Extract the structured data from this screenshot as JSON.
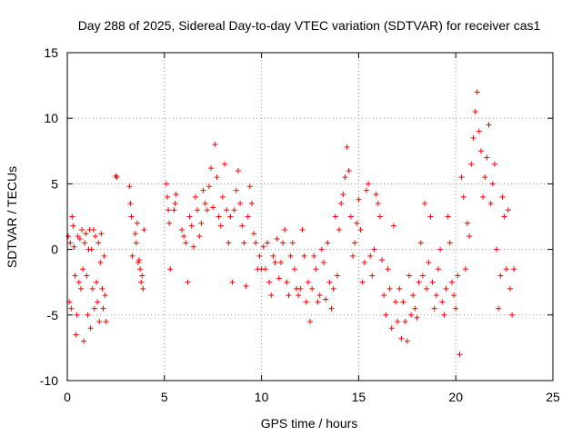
{
  "chart_data": {
    "type": "scatter",
    "title": "Day 288 of 2025, Sidereal Day-to-day VTEC variation (SDTVAR) for receiver cas1",
    "xlabel": "GPS time / hours",
    "ylabel": "SDTVAR / TECUs",
    "xlim": [
      0,
      25
    ],
    "ylim": [
      -10,
      15
    ],
    "xticks": [
      0,
      5,
      10,
      15,
      20,
      25
    ],
    "yticks": [
      -10,
      -5,
      0,
      5,
      10,
      15
    ],
    "xtick_labels": [
      "0",
      "5",
      "10",
      "15",
      "20",
      "25"
    ],
    "ytick_labels": [
      "-10",
      "-5",
      "0",
      "5",
      "10",
      "15"
    ],
    "grid": true,
    "marker": "plus",
    "color": "#ff0000",
    "series": [
      {
        "name": "SDTVAR",
        "x": [
          0.05,
          0.1,
          0.15,
          0.2,
          0.25,
          0.3,
          0.35,
          0.4,
          0.45,
          0.5,
          0.55,
          0.6,
          0.65,
          0.7,
          0.75,
          0.8,
          0.85,
          0.9,
          0.95,
          1.0,
          1.05,
          1.1,
          1.15,
          1.2,
          1.25,
          1.3,
          1.35,
          1.4,
          1.45,
          1.5,
          1.55,
          1.6,
          1.65,
          1.7,
          1.75,
          1.8,
          1.85,
          1.9,
          1.95,
          2.0,
          2.5,
          2.55,
          3.2,
          3.25,
          3.3,
          3.35,
          3.5,
          3.55,
          3.6,
          3.65,
          3.7,
          3.75,
          3.8,
          3.85,
          3.9,
          3.95,
          5.1,
          5.15,
          5.2,
          5.25,
          5.3,
          5.5,
          5.55,
          5.6,
          5.9,
          6.0,
          6.1,
          6.2,
          6.3,
          6.4,
          6.5,
          6.6,
          6.7,
          6.8,
          6.9,
          7.0,
          7.1,
          7.2,
          7.3,
          7.4,
          7.5,
          7.6,
          7.7,
          7.8,
          7.9,
          8.0,
          8.1,
          8.2,
          8.3,
          8.4,
          8.5,
          8.6,
          8.7,
          8.8,
          8.9,
          9.0,
          9.1,
          9.2,
          9.3,
          9.4,
          9.5,
          9.6,
          9.7,
          9.8,
          9.9,
          10.0,
          10.1,
          10.2,
          10.3,
          10.4,
          10.5,
          10.6,
          10.7,
          10.8,
          10.9,
          11.0,
          11.1,
          11.2,
          11.3,
          11.4,
          11.5,
          11.6,
          11.7,
          11.8,
          11.9,
          12.0,
          12.1,
          12.2,
          12.3,
          12.4,
          12.5,
          12.6,
          12.7,
          12.8,
          12.9,
          13.0,
          13.1,
          13.2,
          13.3,
          13.4,
          13.5,
          13.6,
          13.7,
          13.8,
          13.9,
          14.0,
          14.1,
          14.2,
          14.3,
          14.4,
          14.5,
          14.6,
          14.7,
          14.8,
          14.9,
          15.0,
          15.1,
          15.2,
          15.3,
          15.4,
          15.5,
          15.6,
          15.7,
          15.8,
          15.9,
          16.0,
          16.1,
          16.2,
          16.3,
          16.4,
          16.5,
          16.6,
          16.7,
          16.8,
          16.9,
          17.0,
          17.1,
          17.2,
          17.3,
          17.4,
          17.5,
          17.6,
          17.7,
          17.8,
          17.9,
          18.0,
          18.1,
          18.2,
          18.3,
          18.4,
          18.5,
          18.6,
          18.7,
          18.8,
          18.9,
          19.0,
          19.1,
          19.2,
          19.3,
          19.4,
          19.5,
          19.6,
          19.7,
          19.8,
          19.9,
          20.0,
          20.1,
          20.2,
          20.3,
          20.4,
          20.5,
          20.6,
          20.7,
          20.8,
          20.9,
          21.0,
          21.1,
          21.2,
          21.3,
          21.4,
          21.5,
          21.6,
          21.7,
          21.8,
          21.9,
          22.0,
          22.1,
          22.2,
          22.3,
          22.4,
          22.5,
          22.6,
          22.7,
          22.8,
          22.9,
          23.0
        ],
        "y": [
          1.0,
          -4.0,
          0.5,
          -4.5,
          2.5,
          1.8,
          0.2,
          -2.0,
          -6.5,
          -5.0,
          1.0,
          -2.5,
          0.8,
          -3.0,
          1.5,
          -1.5,
          -7.0,
          0.5,
          1.2,
          -2.0,
          -5.0,
          0.0,
          1.5,
          -6.0,
          0.0,
          -3.0,
          1.5,
          -4.5,
          1.0,
          -2.5,
          -4.0,
          0.5,
          -5.5,
          -1.0,
          1.2,
          -3.0,
          -4.5,
          -0.5,
          -3.5,
          -5.5,
          5.6,
          5.5,
          4.8,
          3.5,
          2.5,
          -0.5,
          1.2,
          0.5,
          2.0,
          -1.0,
          -0.8,
          -1.5,
          -2.5,
          -2.0,
          -3.0,
          1.5,
          5.0,
          4.0,
          3.0,
          2.0,
          -1.5,
          3.0,
          3.5,
          4.2,
          1.5,
          1.0,
          0.5,
          -2.5,
          2.5,
          1.8,
          0.2,
          4.0,
          3.0,
          1.0,
          2.0,
          4.5,
          3.5,
          3.0,
          4.8,
          6.2,
          3.2,
          8.0,
          5.5,
          2.5,
          1.8,
          4.0,
          6.5,
          3.0,
          0.5,
          2.5,
          -2.5,
          3.0,
          4.5,
          6.0,
          3.5,
          1.8,
          0.5,
          -2.8,
          2.5,
          4.8,
          3.5,
          1.2,
          0.5,
          -1.5,
          -0.5,
          -1.5,
          0.2,
          -1.5,
          0.5,
          -2.5,
          -3.5,
          -0.5,
          -1.0,
          0.8,
          -2.2,
          -1.0,
          0.5,
          1.5,
          -2.5,
          -3.5,
          -0.5,
          0.5,
          -1.5,
          -3.0,
          -3.5,
          -3.0,
          1.5,
          -0.5,
          -4.0,
          -2.5,
          -5.5,
          -3.0,
          -0.5,
          -1.5,
          -4.0,
          -3.5,
          0.0,
          -1.0,
          -3.8,
          0.5,
          -2.5,
          -4.5,
          -3.0,
          2.5,
          -2.0,
          1.5,
          3.5,
          4.2,
          5.5,
          7.8,
          6.0,
          2.5,
          -0.5,
          0.5,
          2.0,
          3.8,
          1.5,
          -2.5,
          -1.0,
          4.5,
          5.0,
          -0.5,
          -2.0,
          0.0,
          4.2,
          3.5,
          2.5,
          -0.8,
          -3.5,
          -5.0,
          -1.5,
          -3.0,
          -6.0,
          1.8,
          -4.0,
          -5.5,
          -3.0,
          -6.8,
          -4.0,
          -5.5,
          -7.0,
          -2.0,
          -5.0,
          -3.5,
          -4.5,
          -5.2,
          -2.5,
          0.5,
          -2.0,
          3.5,
          -3.0,
          -1.0,
          2.5,
          -2.5,
          -4.5,
          -3.5,
          -1.5,
          0.0,
          -4.0,
          -5.0,
          -3.0,
          2.5,
          0.5,
          -2.5,
          -3.5,
          -4.5,
          -2.0,
          -8.0,
          5.5,
          4.0,
          -1.5,
          2.0,
          1.0,
          6.5,
          8.5,
          10.5,
          12.0,
          9.0,
          7.5,
          4.0,
          5.5,
          7.0,
          9.5,
          3.5,
          5.0,
          6.5,
          0.0,
          -4.5,
          -2.0,
          4.0,
          2.5,
          -1.5,
          3.0,
          -3.0,
          -5.0,
          -1.5
        ]
      }
    ]
  }
}
